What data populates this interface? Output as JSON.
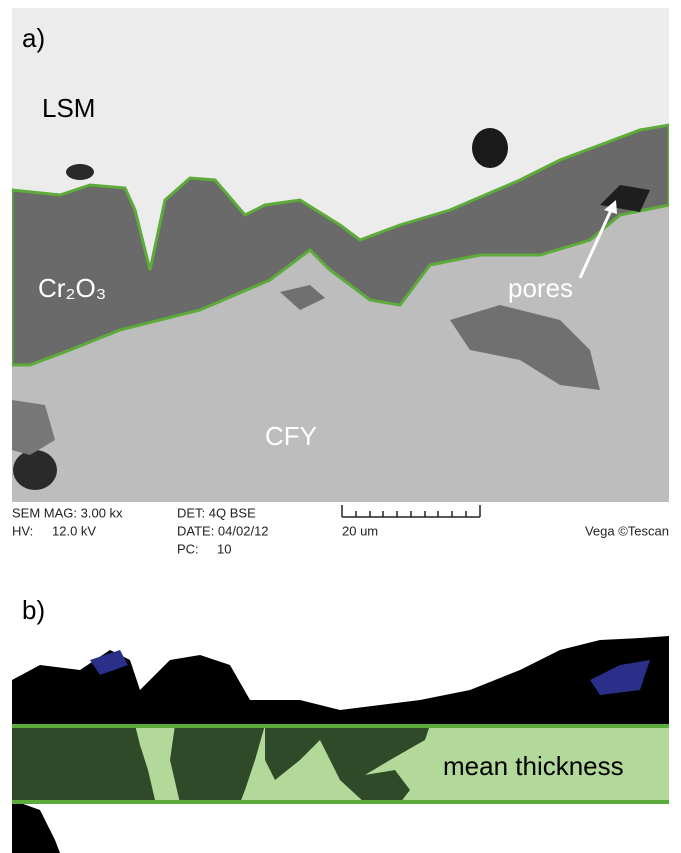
{
  "panel_a": {
    "label": "a)",
    "regions": {
      "top": "LSM",
      "middle": "Cr₂O₃",
      "bottom": "CFY"
    },
    "annotation": "pores",
    "metadata": {
      "mag": "SEM MAG: 3.00 kx",
      "hv_label": "HV:",
      "hv_value": "12.0 kV",
      "detector": "DET: 4Q BSE",
      "date": "DATE: 04/02/12",
      "pc_label": "PC:",
      "pc_value": "10",
      "scale": "20 um",
      "brand": "Vega ©Tescan"
    }
  },
  "panel_b": {
    "label": "b)",
    "band_label": "mean thickness"
  }
}
